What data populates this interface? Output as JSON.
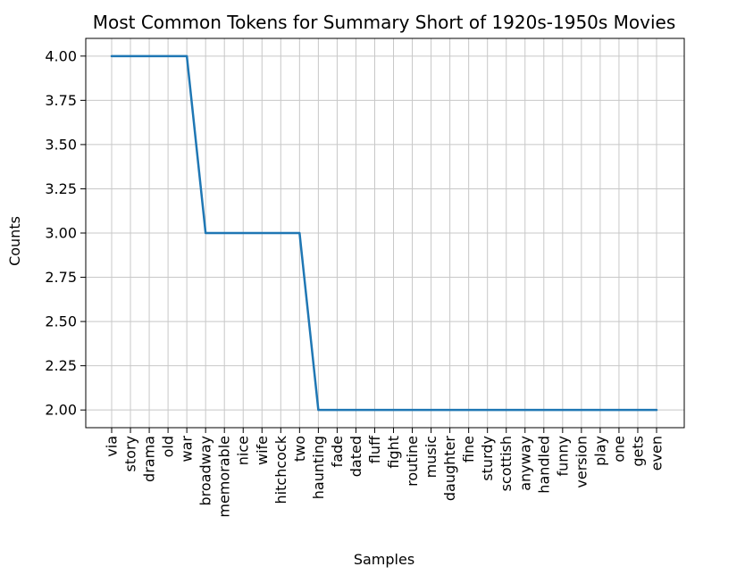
{
  "chart_data": {
    "type": "line",
    "title": "Most Common Tokens for Summary Short of 1920s-1950s Movies",
    "xlabel": "Samples",
    "ylabel": "Counts",
    "categories": [
      "via",
      "story",
      "drama",
      "old",
      "war",
      "broadway",
      "memorable",
      "nice",
      "wife",
      "hitchcock",
      "two",
      "haunting",
      "fade",
      "dated",
      "fluff",
      "fight",
      "routine",
      "music",
      "daughter",
      "fine",
      "sturdy",
      "scottish",
      "anyway",
      "handled",
      "funny",
      "version",
      "play",
      "one",
      "gets",
      "even"
    ],
    "values": [
      4,
      4,
      4,
      4,
      4,
      3,
      3,
      3,
      3,
      3,
      3,
      2,
      2,
      2,
      2,
      2,
      2,
      2,
      2,
      2,
      2,
      2,
      2,
      2,
      2,
      2,
      2,
      2,
      2,
      2
    ],
    "ylim": [
      1.9,
      4.1
    ],
    "yticks": [
      2.0,
      2.25,
      2.5,
      2.75,
      3.0,
      3.25,
      3.5,
      3.75,
      4.0
    ],
    "ytick_labels": [
      "2.00",
      "2.25",
      "2.50",
      "2.75",
      "3.00",
      "3.25",
      "3.50",
      "3.75",
      "4.00"
    ],
    "grid": true,
    "line_color": "#1f77b4",
    "grid_color": "#c8c8c8"
  }
}
